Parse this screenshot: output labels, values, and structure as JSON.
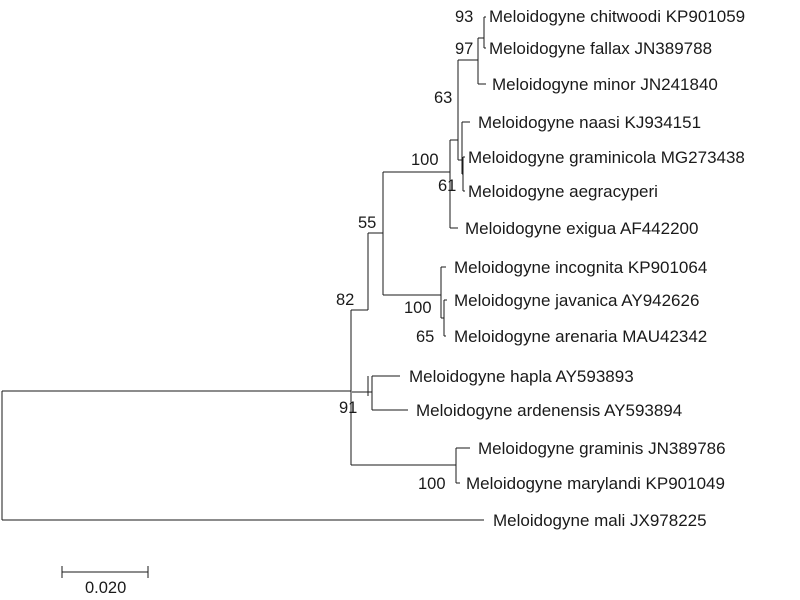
{
  "tree": {
    "taxa": {
      "chitwoodi": "Meloidogyne chitwoodi KP901059",
      "fallax": "Meloidogyne fallax JN389788",
      "minor": "Meloidogyne minor JN241840",
      "naasi": "Meloidogyne naasi KJ934151",
      "graminicola": "Meloidogyne graminicola MG273438",
      "aegracyperi": "Meloidogyne aegracyperi",
      "exigua": "Meloidogyne exigua AF442200",
      "incognita": "Meloidogyne incognita KP901064",
      "javanica": "Meloidogyne javanica AY942626",
      "arenaria": "Meloidogyne arenaria MAU42342",
      "hapla": "Meloidogyne hapla AY593893",
      "ardenensis": "Meloidogyne ardenensis AY593894",
      "graminis": "Meloidogyne graminis JN389786",
      "marylandi": "Meloidogyne marylandi KP901049",
      "mali": "Meloidogyne mali JX978225"
    },
    "support": {
      "chitwoodi_fallax": "93",
      "fallax_minor": "97",
      "group_63": "63",
      "graminicola_aegracyperi": "61",
      "exigua_clade": "100",
      "clade_55": "55",
      "javanica_arenaria": "65",
      "incognita_clade": "100",
      "ingroup": "82",
      "hapla_ardenensis": "91",
      "graminis_marylandi": "100"
    },
    "scale_bar": {
      "label": "0.020"
    }
  }
}
